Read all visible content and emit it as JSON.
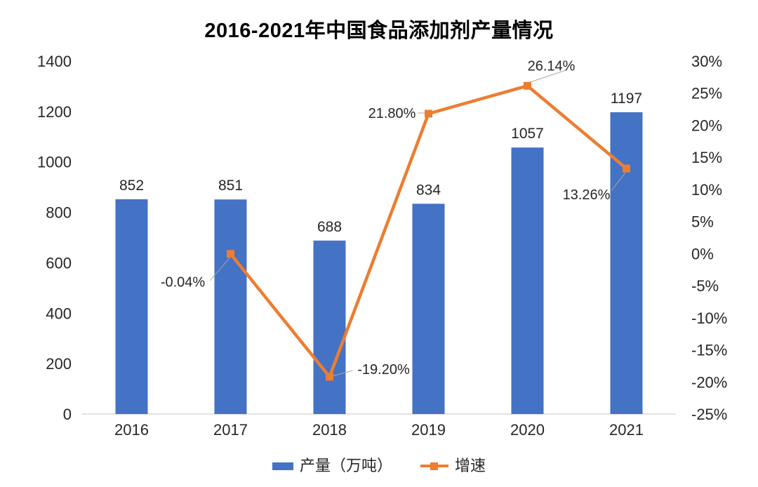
{
  "title": "2016-2021年中国食品添加剂产量情况",
  "legend": {
    "items": [
      {
        "label": "产量（万吨）",
        "swatch": "bar"
      },
      {
        "label": "增速",
        "swatch": "line"
      }
    ]
  },
  "colors": {
    "bar": "#4472C4",
    "line": "#ED7D31",
    "label_text": "#262626",
    "axis_text": "#262626",
    "axis_line": "#D9D9D9",
    "leader_line": "#A6A6A6",
    "background": "#FFFFFF"
  },
  "chart_data": {
    "type": "bar",
    "subtype": "combo-bar-line",
    "title": "2016-2021年中国食品添加剂产量情况",
    "categories": [
      "2016",
      "2017",
      "2018",
      "2019",
      "2020",
      "2021"
    ],
    "series": [
      {
        "name": "产量（万吨）",
        "type": "bar",
        "axis": "left",
        "values": [
          852,
          851,
          688,
          834,
          1057,
          1197
        ],
        "data_labels": [
          "852",
          "851",
          "688",
          "834",
          "1057",
          "1197"
        ]
      },
      {
        "name": "增速",
        "type": "line",
        "axis": "right",
        "values": [
          null,
          -0.04,
          -19.2,
          21.8,
          26.14,
          13.26
        ],
        "data_labels": [
          null,
          "-0.04%",
          "-19.20%",
          "21.80%",
          "26.14%",
          "13.26%"
        ]
      }
    ],
    "left_axis": {
      "min": 0,
      "max": 1400,
      "step": 200,
      "ticks": [
        "0",
        "200",
        "400",
        "600",
        "800",
        "1000",
        "1200",
        "1400"
      ]
    },
    "right_axis": {
      "min": -25,
      "max": 30,
      "step": 5,
      "ticks": [
        "-25%",
        "-20%",
        "-15%",
        "-10%",
        "-5%",
        "0%",
        "5%",
        "10%",
        "15%",
        "20%",
        "25%",
        "30%"
      ]
    },
    "grid": false,
    "legend_position": "bottom"
  }
}
